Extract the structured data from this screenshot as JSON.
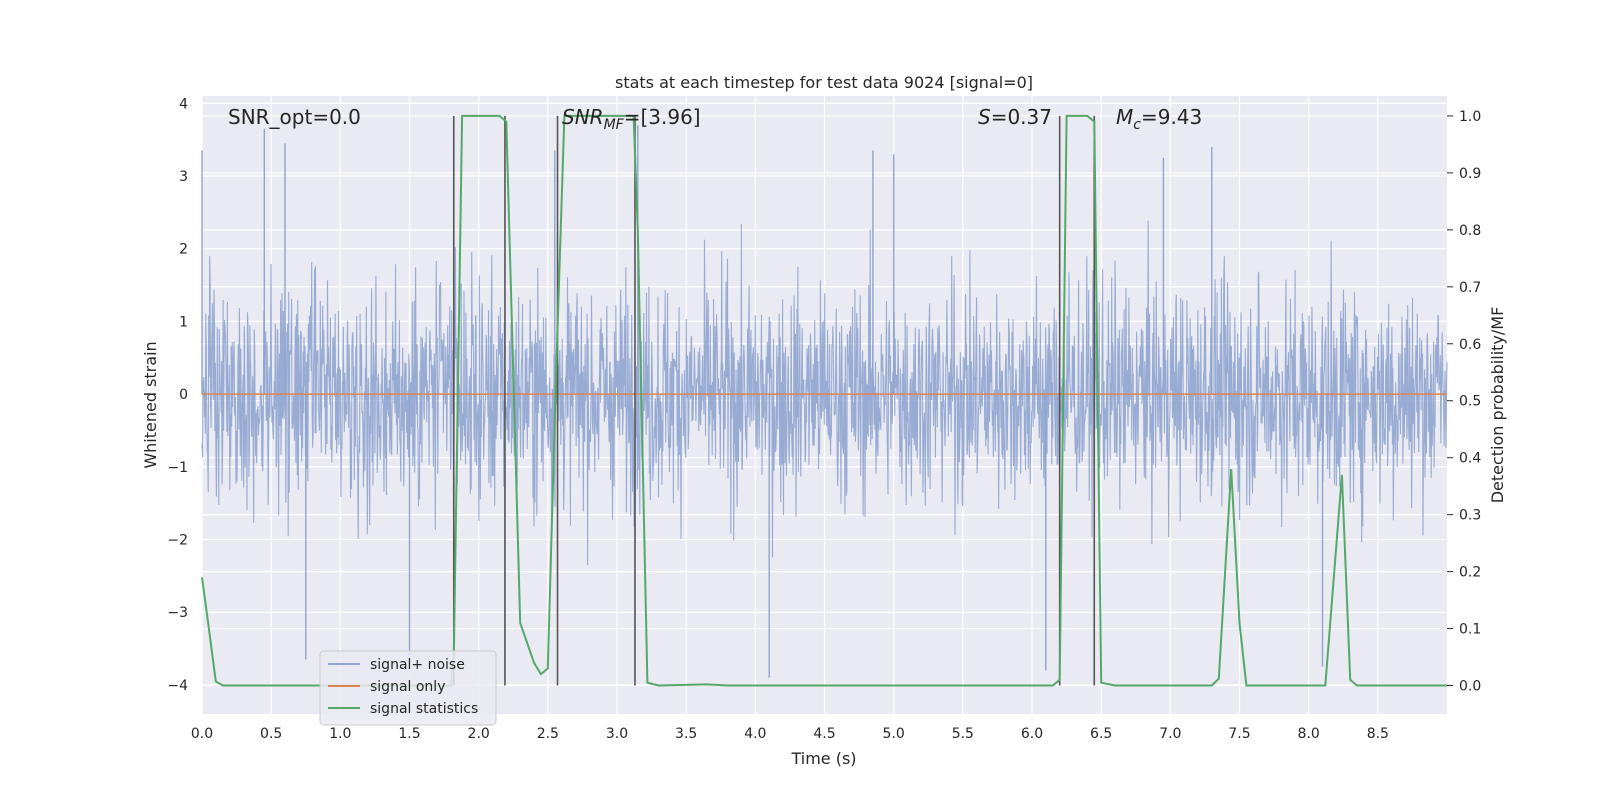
{
  "chart_data": {
    "type": "line",
    "title": "stats at each timestep for test data 9024 [signal=0]",
    "xlabel": "Time (s)",
    "ylabel_left": "Whitened strain",
    "ylabel_right": "Detection probability/MF",
    "xlim": [
      0.0,
      9.0
    ],
    "ylim_left": [
      -4.4,
      4.1
    ],
    "ylim_right": [
      -0.05,
      1.035
    ],
    "x_ticks": [
      "0.0",
      "0.5",
      "1.0",
      "1.5",
      "2.0",
      "2.5",
      "3.0",
      "3.5",
      "4.0",
      "4.5",
      "5.0",
      "5.5",
      "6.0",
      "6.5",
      "7.0",
      "7.5",
      "8.0",
      "8.5"
    ],
    "y_left_ticks": [
      "−4",
      "−3",
      "−2",
      "−1",
      "0",
      "1",
      "2",
      "3",
      "4"
    ],
    "y_right_ticks": [
      "0.0",
      "0.1",
      "0.2",
      "0.3",
      "0.4",
      "0.5",
      "0.6",
      "0.7",
      "0.8",
      "0.9",
      "1.0"
    ],
    "grid": true,
    "legend_position": "lower-left",
    "annotations": {
      "snr_opt": "SNR_opt=0.0",
      "snr_mf_main": "SNR",
      "snr_mf_sub": "MF",
      "snr_mf_value": "=[3.96]",
      "s_main": "S",
      "s_value": "=0.37",
      "mc_main": "M",
      "mc_sub": "c",
      "mc_value": "=9.43"
    },
    "series": [
      {
        "name": "signal+ noise",
        "color": "#8fa4cf",
        "axis": "left",
        "description_values": "whitened noise, dense, bulk within about ±1.5, excursions to about ±3.7",
        "peak_samples": [
          {
            "x": 0.0,
            "y": 3.35
          },
          {
            "x": 0.45,
            "y": 3.65
          },
          {
            "x": 0.6,
            "y": 3.45
          },
          {
            "x": 2.55,
            "y": 3.35
          },
          {
            "x": 3.15,
            "y": 3.7
          },
          {
            "x": 4.85,
            "y": 3.35
          },
          {
            "x": 5.0,
            "y": 3.3
          },
          {
            "x": 6.95,
            "y": 3.25
          },
          {
            "x": 7.3,
            "y": 3.4
          },
          {
            "x": 0.75,
            "y": -3.65
          },
          {
            "x": 1.5,
            "y": -3.6
          },
          {
            "x": 4.1,
            "y": -3.9
          },
          {
            "x": 8.1,
            "y": -3.75
          },
          {
            "x": 6.1,
            "y": -3.8
          }
        ]
      },
      {
        "name": "signal only",
        "color": "#dd8452",
        "axis": "left",
        "x": [
          0.0,
          9.0
        ],
        "y": [
          0.0,
          0.0
        ]
      },
      {
        "name": "signal statistics",
        "color": "#55a868",
        "axis": "right",
        "x": [
          0.0,
          0.05,
          0.1,
          0.15,
          1.0,
          1.8,
          1.82,
          1.88,
          2.15,
          2.2,
          2.3,
          2.4,
          2.45,
          2.5,
          2.56,
          2.62,
          3.12,
          3.15,
          3.22,
          3.3,
          3.65,
          3.8,
          6.15,
          6.2,
          6.25,
          6.4,
          6.45,
          6.5,
          6.6,
          7.3,
          7.35,
          7.44,
          7.5,
          7.55,
          7.6,
          8.12,
          8.24,
          8.3,
          8.35,
          9.0
        ],
        "y": [
          0.19,
          0.1,
          0.007,
          0.0,
          0.0,
          0.0,
          0.05,
          1.0,
          1.0,
          0.99,
          0.11,
          0.04,
          0.02,
          0.03,
          0.55,
          1.0,
          1.0,
          0.8,
          0.005,
          0.0,
          0.002,
          0.0,
          0.0,
          0.01,
          1.0,
          1.0,
          0.99,
          0.005,
          0.0,
          0.0,
          0.012,
          0.38,
          0.11,
          0.0,
          0.0,
          0.0,
          0.37,
          0.01,
          0.0,
          0.0
        ]
      }
    ],
    "vertical_markers": {
      "color": "#555555",
      "x": [
        1.82,
        2.19,
        2.57,
        3.13,
        6.2,
        6.45
      ],
      "ymin_right": 0.0,
      "ymax_right": 1.0
    }
  }
}
